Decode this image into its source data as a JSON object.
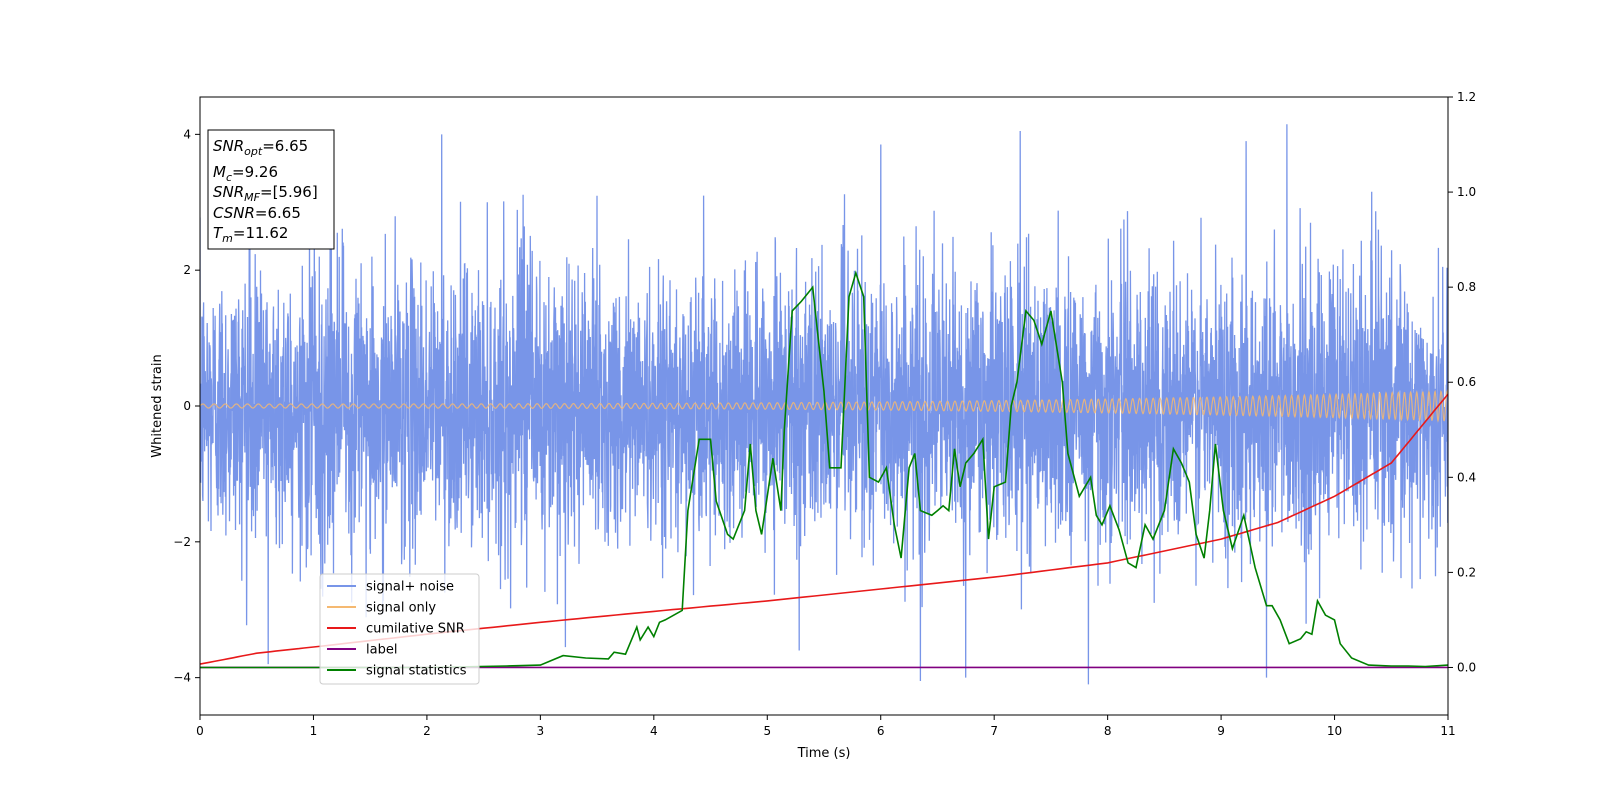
{
  "chart_data": {
    "type": "line",
    "xlabel": "Time (s)",
    "ylabel": "Whitened strain",
    "ylabel_right": "",
    "xlim": [
      0,
      11
    ],
    "ylim_left": [
      -4.55,
      4.55
    ],
    "ylim_right": [
      -0.1,
      1.2
    ],
    "x_ticks": [
      0,
      1,
      2,
      3,
      4,
      5,
      6,
      7,
      8,
      9,
      10,
      11
    ],
    "y_ticks_left": [
      -4,
      -2,
      0,
      2,
      4
    ],
    "y_ticks_right": [
      0.0,
      0.2,
      0.4,
      0.6,
      0.8,
      1.0,
      1.2
    ],
    "y_tick_labels_right": [
      "0.0",
      "0.2",
      "0.4",
      "0.6",
      "0.8",
      "1.0",
      "1.2"
    ],
    "y_tick_labels_left": [
      "−4",
      "−2",
      "0",
      "2",
      "4"
    ],
    "grid": false,
    "legend_position": "lower-left",
    "info_box": {
      "lines": [
        {
          "base": "SNR",
          "sub": "opt",
          "value": "=6.65"
        },
        {
          "base": "M",
          "sub": "c",
          "value": "=9.26"
        },
        {
          "base": "SNR",
          "sub": "MF",
          "value": "=[5.96]"
        },
        {
          "base": "CSNR",
          "sub": "",
          "value": "=6.65"
        },
        {
          "base": "T",
          "sub": "m",
          "value": "=11.62"
        }
      ]
    },
    "series": [
      {
        "name": "signal+ noise",
        "axis": "left",
        "color": "#7895e8",
        "style": "white-noise-band",
        "mean": 0,
        "sd": 1.0,
        "x_range": [
          0,
          11
        ],
        "peaks": [
          [
            0.6,
            -3.8
          ],
          [
            2.13,
            4.0
          ],
          [
            3.22,
            -3.55
          ],
          [
            5.28,
            -3.6
          ],
          [
            6.0,
            3.85
          ],
          [
            6.35,
            -4.05
          ],
          [
            6.75,
            -4.0
          ],
          [
            7.23,
            4.05
          ],
          [
            7.83,
            -4.1
          ],
          [
            9.4,
            -4.0
          ],
          [
            9.58,
            4.15
          ],
          [
            9.22,
            3.9
          ]
        ]
      },
      {
        "name": "signal only",
        "axis": "left",
        "color": "#f5b971",
        "style": "chirp",
        "amplitude_start": 0.03,
        "amplitude_end": 0.22,
        "x_range": [
          0,
          11
        ]
      },
      {
        "name": "cumilative SNR",
        "axis": "right",
        "color": "#e8191a",
        "x": [
          0,
          0.5,
          1,
          2,
          3,
          4,
          5,
          6,
          7,
          8,
          9,
          9.5,
          10,
          10.5,
          11
        ],
        "y": [
          0.007,
          0.03,
          0.043,
          0.07,
          0.095,
          0.118,
          0.14,
          0.165,
          0.19,
          0.22,
          0.27,
          0.305,
          0.36,
          0.43,
          0.575
        ]
      },
      {
        "name": "label",
        "axis": "right",
        "color": "#800080",
        "x": [
          0,
          11
        ],
        "y": [
          0,
          0
        ]
      },
      {
        "name": "signal statistics",
        "axis": "right",
        "color": "#008000",
        "x": [
          0,
          1,
          2,
          2.7,
          3.0,
          3.2,
          3.4,
          3.6,
          3.65,
          3.75,
          3.85,
          3.88,
          3.95,
          4.0,
          4.05,
          4.1,
          4.25,
          4.3,
          4.4,
          4.5,
          4.55,
          4.65,
          4.7,
          4.8,
          4.85,
          4.9,
          4.95,
          5.05,
          5.12,
          5.15,
          5.22,
          5.3,
          5.4,
          5.5,
          5.55,
          5.65,
          5.72,
          5.78,
          5.85,
          5.9,
          5.98,
          6.05,
          6.12,
          6.18,
          6.25,
          6.3,
          6.35,
          6.45,
          6.5,
          6.55,
          6.6,
          6.65,
          6.7,
          6.75,
          6.82,
          6.9,
          6.95,
          7.0,
          7.1,
          7.15,
          7.2,
          7.28,
          7.35,
          7.42,
          7.5,
          7.6,
          7.65,
          7.75,
          7.85,
          7.9,
          7.95,
          8.02,
          8.1,
          8.18,
          8.25,
          8.33,
          8.4,
          8.5,
          8.58,
          8.65,
          8.72,
          8.78,
          8.85,
          8.9,
          8.95,
          9.02,
          9.1,
          9.2,
          9.3,
          9.4,
          9.45,
          9.52,
          9.6,
          9.7,
          9.75,
          9.8,
          9.85,
          9.92,
          10.0,
          10.05,
          10.15,
          10.3,
          10.5,
          10.65,
          10.8,
          11.0
        ],
        "y": [
          0.0,
          0.0,
          0.0,
          0.003,
          0.005,
          0.025,
          0.02,
          0.018,
          0.032,
          0.028,
          0.085,
          0.058,
          0.085,
          0.065,
          0.095,
          0.1,
          0.12,
          0.33,
          0.48,
          0.48,
          0.35,
          0.28,
          0.27,
          0.33,
          0.47,
          0.33,
          0.28,
          0.44,
          0.33,
          0.5,
          0.75,
          0.77,
          0.8,
          0.58,
          0.42,
          0.42,
          0.78,
          0.83,
          0.78,
          0.4,
          0.39,
          0.42,
          0.3,
          0.23,
          0.42,
          0.45,
          0.33,
          0.32,
          0.33,
          0.34,
          0.33,
          0.46,
          0.38,
          0.43,
          0.45,
          0.48,
          0.27,
          0.38,
          0.39,
          0.55,
          0.6,
          0.75,
          0.73,
          0.68,
          0.75,
          0.6,
          0.45,
          0.36,
          0.4,
          0.32,
          0.3,
          0.34,
          0.29,
          0.22,
          0.21,
          0.3,
          0.27,
          0.33,
          0.46,
          0.43,
          0.39,
          0.28,
          0.23,
          0.33,
          0.47,
          0.33,
          0.25,
          0.32,
          0.21,
          0.13,
          0.13,
          0.1,
          0.05,
          0.06,
          0.075,
          0.07,
          0.14,
          0.11,
          0.1,
          0.05,
          0.02,
          0.005,
          0.003,
          0.003,
          0.002,
          0.005
        ]
      }
    ]
  }
}
